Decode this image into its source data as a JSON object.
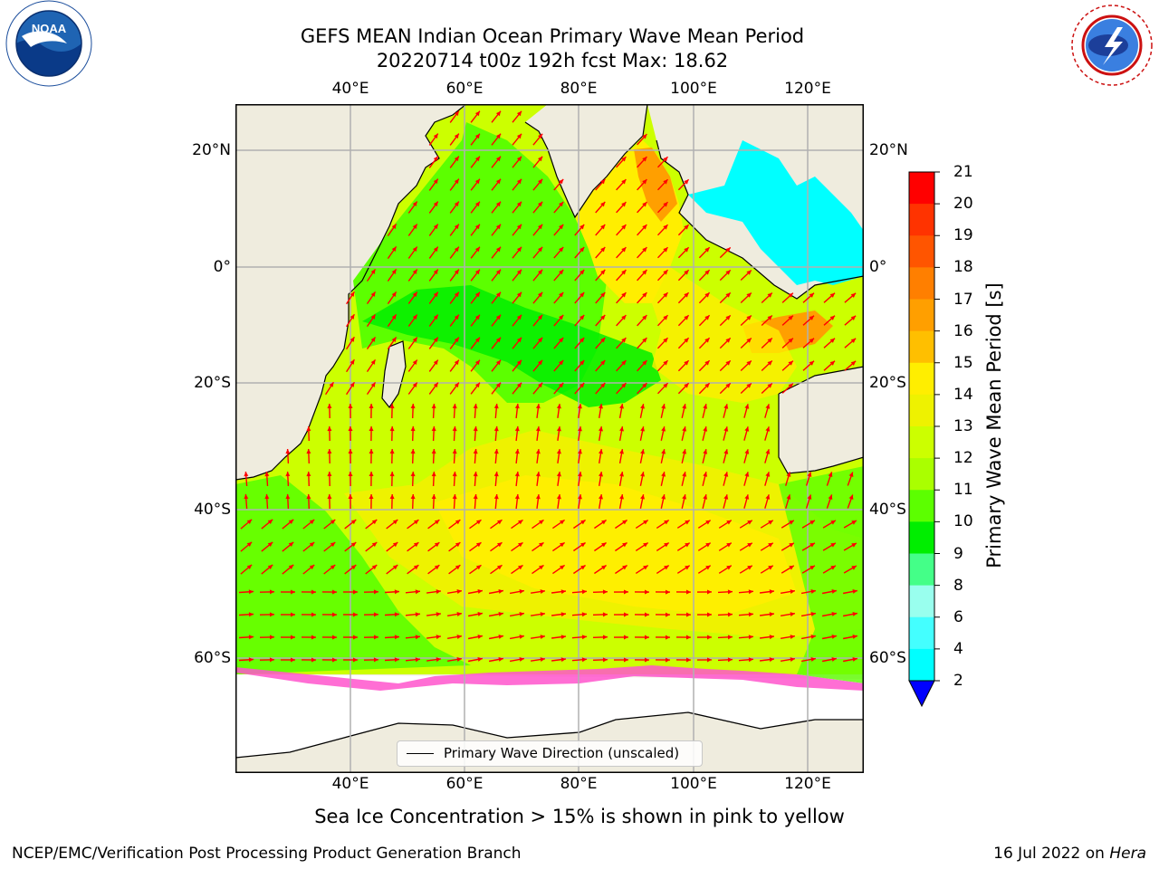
{
  "header": {
    "title_line1": "GEFS MEAN Indian Ocean Primary Wave Mean Period",
    "title_line2": "20220714 t00z 192h fcst   Max: 18.62",
    "left_logo": "noaa-logo",
    "right_logo": "national-weather-service-logo",
    "left_logo_text": "NOAA",
    "right_logo_text": "NATIONAL WEATHER SERVICE"
  },
  "map": {
    "lon_ticks": [
      "40°E",
      "60°E",
      "80°E",
      "100°E",
      "120°E"
    ],
    "lat_ticks": [
      "20°N",
      "0°",
      "20°S",
      "40°S",
      "60°S"
    ],
    "lon_range": [
      20,
      130
    ],
    "lat_range": [
      -77,
      28
    ],
    "grid": true,
    "colors": {
      "land": "#efecde",
      "ice_shelf": "#ffffff",
      "arrow": "#ff0000",
      "coast": "#000000"
    }
  },
  "legend": {
    "label": "Primary Wave Direction (unscaled)",
    "placement": "bottom-center"
  },
  "colorbar": {
    "title": "Primary Wave Mean Period [s]",
    "labels": [
      "21",
      "20",
      "19",
      "18",
      "17",
      "16",
      "15",
      "14",
      "13",
      "12",
      "11",
      "10",
      "9",
      "8",
      "6",
      "4",
      "2"
    ],
    "colors": [
      "#ff0000",
      "#ff3300",
      "#ff5500",
      "#ff7f00",
      "#ff9f00",
      "#ffbf00",
      "#ffee00",
      "#eef200",
      "#ccff00",
      "#aaff00",
      "#5cff00",
      "#00ee00",
      "#44ff88",
      "#99ffee",
      "#44ffff",
      "#00ffff",
      "#00c8ff",
      "#0066ff"
    ],
    "extend_color": "#0000ff"
  },
  "footnote": "Sea Ice Concentration > 15% is shown in pink to yellow",
  "credit": "NCEP/EMC/Verification Post Processing Product Generation Branch",
  "datestamp": {
    "text": "16 Jul 2022 on ",
    "host": "Hera"
  }
}
